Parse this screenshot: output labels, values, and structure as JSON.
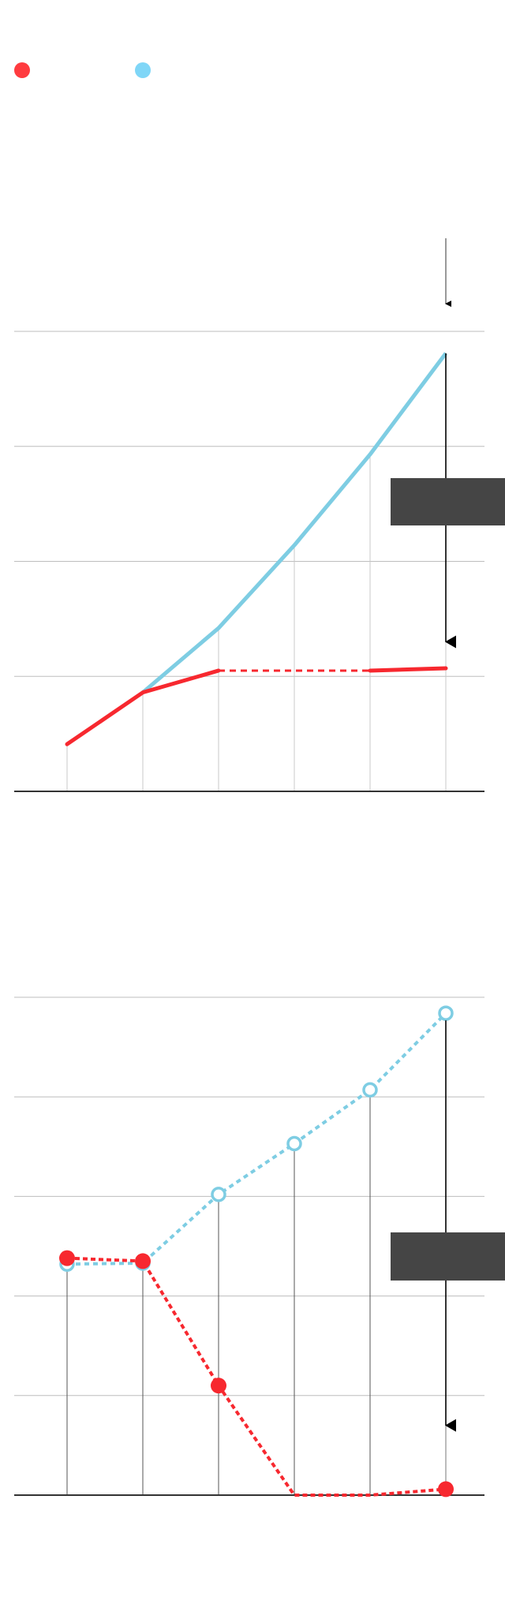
{
  "legend": [
    {
      "color": "#ff3b3f",
      "marker": "filled-circle"
    },
    {
      "color": "#7fd6f7",
      "marker": "filled-circle"
    }
  ],
  "colors": {
    "red": "#f7282f",
    "blue": "#7ecde3",
    "grid": "#bdbdbd",
    "axis": "#333333",
    "annotation_box": "#454545"
  },
  "chart_data": [
    {
      "type": "line",
      "categories": [
        "",
        "",
        "",
        "",
        "",
        ""
      ],
      "ylim": [
        0,
        4
      ],
      "grid": true,
      "series": [
        {
          "color": "#f7282f",
          "style": "solid, dashed gap between points 3 and 5",
          "values": [
            0.41,
            0.86,
            1.05,
            null,
            1.05,
            1.07
          ]
        },
        {
          "color": "#7ecde3",
          "style": "solid",
          "values": [
            null,
            0.86,
            1.42,
            2.14,
            2.93,
            3.81
          ]
        }
      ],
      "annotation": {
        "type": "arrow-down",
        "at_category": 5,
        "from_value": 3.81,
        "to_value": 1.3
      }
    },
    {
      "type": "line",
      "categories": [
        "",
        "",
        "",
        "",
        "",
        ""
      ],
      "ylim": [
        0,
        5
      ],
      "grid": true,
      "series": [
        {
          "color": "#f7282f",
          "style": "dotted, filled markers",
          "values": [
            2.38,
            2.35,
            1.1,
            0,
            0,
            0.06
          ]
        },
        {
          "color": "#7ecde3",
          "style": "dotted, hollow markers",
          "values": [
            2.32,
            2.33,
            3.02,
            3.53,
            4.07,
            4.84
          ]
        }
      ],
      "annotation": {
        "type": "arrow-down",
        "at_category": 5,
        "from_value": 4.84,
        "to_value": 0.7
      }
    }
  ]
}
